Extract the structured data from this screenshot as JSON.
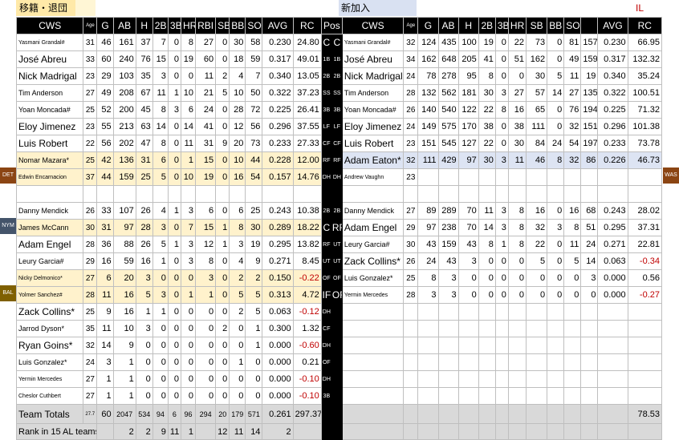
{
  "header": {
    "left": "移籍・退団",
    "right": "新加入",
    "il": "IL"
  },
  "columns": {
    "name": "CWS",
    "age": "Age",
    "g": "G",
    "ab": "AB",
    "h": "H",
    "d": "2B",
    "t": "3B",
    "hr": "HR",
    "rbi": "RBI",
    "sb": "SB",
    "bb": "BB",
    "so": "SO",
    "avg": "AVG",
    "rc": "RC",
    "pos": "Pos"
  },
  "right_columns": {
    "name": "CWS",
    "age": "Age",
    "g": "G",
    "ab": "AB",
    "h": "H",
    "d": "2B",
    "t": "3B",
    "hr": "HR",
    "sb": "SB",
    "bb": "BB",
    "so": "SO",
    "avg": "AVG",
    "rc": "RC"
  },
  "team_markers": [
    {
      "label": "DET",
      "row": 9,
      "side": "left",
      "color": "#8b4513"
    },
    {
      "label": "WAS",
      "row": 9,
      "side": "right",
      "color": "#8b4513"
    },
    {
      "label": "NYM",
      "row": 12,
      "side": "left",
      "color": "#44546a"
    },
    {
      "label": "BAL",
      "row": 16,
      "side": "left",
      "color": "#7f6000"
    }
  ],
  "rows": [
    {
      "hl": false,
      "hr": false,
      "left": {
        "name": "Yasmani Grandal#",
        "size": "xs",
        "age": "31",
        "g": "46",
        "ab": "161",
        "h": "37",
        "d": "7",
        "t": "0",
        "hr": "8",
        "rbi": "27",
        "sb": "0",
        "bb": "30",
        "so": "58",
        "avg": "0.230",
        "rc": "24.80"
      },
      "pos_l": "C",
      "pos_r": "C",
      "posbig": true,
      "right": {
        "name": "Yasmani Grandal#",
        "size": "xs",
        "age": "32",
        "g": "124",
        "ab": "435",
        "h": "100",
        "d": "19",
        "t": "0",
        "hr": "22",
        "sb": "73",
        "bb": "0",
        "so": "81",
        "x": "157",
        "avg": "0.230",
        "rc": "66.95"
      }
    },
    {
      "hl": false,
      "hr": false,
      "left": {
        "name": "José Abreu",
        "size": "",
        "age": "33",
        "g": "60",
        "ab": "240",
        "h": "76",
        "d": "15",
        "t": "0",
        "hr": "19",
        "rbi": "60",
        "sb": "0",
        "bb": "18",
        "so": "59",
        "avg": "0.317",
        "rc": "49.01"
      },
      "pos_l": "1B",
      "pos_r": "1B",
      "posbig": false,
      "right": {
        "name": "José Abreu",
        "size": "",
        "age": "34",
        "g": "162",
        "ab": "648",
        "h": "205",
        "d": "41",
        "t": "0",
        "hr": "51",
        "sb": "162",
        "bb": "0",
        "so": "49",
        "x": "159",
        "avg": "0.317",
        "rc": "132.32"
      }
    },
    {
      "hl": false,
      "hr": false,
      "left": {
        "name": "Nick Madrigal",
        "size": "",
        "age": "23",
        "g": "29",
        "ab": "103",
        "h": "35",
        "d": "3",
        "t": "0",
        "hr": "0",
        "rbi": "11",
        "sb": "2",
        "bb": "4",
        "so": "7",
        "avg": "0.340",
        "rc": "13.05"
      },
      "pos_l": "2B",
      "pos_r": "2B",
      "posbig": false,
      "right": {
        "name": "Nick Madrigal",
        "size": "",
        "age": "24",
        "g": "78",
        "ab": "278",
        "h": "95",
        "d": "8",
        "t": "0",
        "hr": "0",
        "sb": "30",
        "bb": "5",
        "so": "11",
        "x": "19",
        "avg": "0.340",
        "rc": "35.24"
      }
    },
    {
      "hl": false,
      "hr": false,
      "left": {
        "name": "Tim Anderson",
        "size": "sm",
        "age": "27",
        "g": "49",
        "ab": "208",
        "h": "67",
        "d": "11",
        "t": "1",
        "hr": "10",
        "rbi": "21",
        "sb": "5",
        "bb": "10",
        "so": "50",
        "avg": "0.322",
        "rc": "37.23"
      },
      "pos_l": "SS",
      "pos_r": "SS",
      "posbig": false,
      "right": {
        "name": "Tim Anderson",
        "size": "sm",
        "age": "28",
        "g": "132",
        "ab": "562",
        "h": "181",
        "d": "30",
        "t": "3",
        "hr": "27",
        "sb": "57",
        "bb": "14",
        "so": "27",
        "x": "135",
        "avg": "0.322",
        "rc": "100.51"
      }
    },
    {
      "hl": false,
      "hr": false,
      "left": {
        "name": "Yoan Moncada#",
        "size": "sm",
        "age": "25",
        "g": "52",
        "ab": "200",
        "h": "45",
        "d": "8",
        "t": "3",
        "hr": "6",
        "rbi": "24",
        "sb": "0",
        "bb": "28",
        "so": "72",
        "avg": "0.225",
        "rc": "26.41"
      },
      "pos_l": "3B",
      "pos_r": "3B",
      "posbig": false,
      "right": {
        "name": "Yoan Moncada#",
        "size": "sm",
        "age": "26",
        "g": "140",
        "ab": "540",
        "h": "122",
        "d": "22",
        "t": "8",
        "hr": "16",
        "sb": "65",
        "bb": "0",
        "so": "76",
        "x": "194",
        "avg": "0.225",
        "rc": "71.32"
      }
    },
    {
      "hl": false,
      "hr": false,
      "left": {
        "name": "Eloy Jimenez",
        "size": "",
        "age": "23",
        "g": "55",
        "ab": "213",
        "h": "63",
        "d": "14",
        "t": "0",
        "hr": "14",
        "rbi": "41",
        "sb": "0",
        "bb": "12",
        "so": "56",
        "avg": "0.296",
        "rc": "37.55"
      },
      "pos_l": "LF",
      "pos_r": "LF",
      "posbig": false,
      "right": {
        "name": "Eloy Jimenez",
        "size": "",
        "age": "24",
        "g": "149",
        "ab": "575",
        "h": "170",
        "d": "38",
        "t": "0",
        "hr": "38",
        "sb": "111",
        "bb": "0",
        "so": "32",
        "x": "151",
        "avg": "0.296",
        "rc": "101.38"
      }
    },
    {
      "hl": false,
      "hr": false,
      "left": {
        "name": "Luis Robert",
        "size": "",
        "age": "22",
        "g": "56",
        "ab": "202",
        "h": "47",
        "d": "8",
        "t": "0",
        "hr": "11",
        "rbi": "31",
        "sb": "9",
        "bb": "20",
        "so": "73",
        "avg": "0.233",
        "rc": "27.33"
      },
      "pos_l": "CF",
      "pos_r": "CF",
      "posbig": false,
      "right": {
        "name": "Luis Robert",
        "size": "",
        "age": "23",
        "g": "151",
        "ab": "545",
        "h": "127",
        "d": "22",
        "t": "0",
        "hr": "30",
        "sb": "84",
        "bb": "24",
        "so": "54",
        "x": "197",
        "avg": "0.233",
        "rc": "73.78"
      }
    },
    {
      "hl": true,
      "hr": true,
      "left": {
        "name": "Nomar Mazara*",
        "size": "sm",
        "age": "25",
        "g": "42",
        "ab": "136",
        "h": "31",
        "d": "6",
        "t": "0",
        "hr": "1",
        "rbi": "15",
        "sb": "0",
        "bb": "10",
        "so": "44",
        "avg": "0.228",
        "rc": "12.00"
      },
      "pos_l": "RF",
      "pos_r": "RF",
      "posbig": false,
      "right": {
        "name": "Adam Eaton*",
        "size": "",
        "age": "32",
        "g": "111",
        "ab": "429",
        "h": "97",
        "d": "30",
        "t": "3",
        "hr": "11",
        "sb": "46",
        "bb": "8",
        "so": "32",
        "x": "86",
        "avg": "0.226",
        "rc": "46.73"
      }
    },
    {
      "hl": true,
      "hr": false,
      "left": {
        "name": "Edwin Encarnacion",
        "size": "xs",
        "age": "37",
        "g": "44",
        "ab": "159",
        "h": "25",
        "d": "5",
        "t": "0",
        "hr": "10",
        "rbi": "19",
        "sb": "0",
        "bb": "16",
        "so": "54",
        "avg": "0.157",
        "rc": "14.76"
      },
      "pos_l": "DH",
      "pos_r": "DH",
      "posbig": false,
      "right": {
        "name": "Andrew Vaughn",
        "size": "xs",
        "age": "23",
        "g": "",
        "ab": "",
        "h": "",
        "d": "",
        "t": "",
        "hr": "",
        "sb": "",
        "bb": "",
        "so": "",
        "x": "",
        "avg": "",
        "rc": ""
      }
    },
    {
      "hl": false,
      "hr": false,
      "spacer": true
    },
    {
      "hl": false,
      "hr": false,
      "left": {
        "name": "Danny Mendick",
        "size": "sm",
        "age": "26",
        "g": "33",
        "ab": "107",
        "h": "26",
        "d": "4",
        "t": "1",
        "hr": "3",
        "rbi": "6",
        "sb": "0",
        "bb": "6",
        "so": "25",
        "avg": "0.243",
        "rc": "10.38"
      },
      "pos_l": "2B",
      "pos_r": "2B",
      "posbig": false,
      "right": {
        "name": "Danny Mendick",
        "size": "sm",
        "age": "27",
        "g": "89",
        "ab": "289",
        "h": "70",
        "d": "11",
        "t": "3",
        "hr": "8",
        "sb": "16",
        "bb": "0",
        "so": "16",
        "x": "68",
        "avg": "0.243",
        "rc": "28.02"
      }
    },
    {
      "hl": true,
      "hr": false,
      "left": {
        "name": "James McCann",
        "size": "sm",
        "age": "30",
        "g": "31",
        "ab": "97",
        "h": "28",
        "d": "3",
        "t": "0",
        "hr": "7",
        "rbi": "15",
        "sb": "1",
        "bb": "8",
        "so": "30",
        "avg": "0.289",
        "rc": "18.22"
      },
      "pos_l": "C",
      "pos_r": "RF",
      "posbig": true,
      "right": {
        "name": "Adam Engel",
        "size": "",
        "age": "29",
        "g": "97",
        "ab": "238",
        "h": "70",
        "d": "14",
        "t": "3",
        "hr": "8",
        "sb": "32",
        "bb": "3",
        "so": "8",
        "x": "51",
        "avg": "0.295",
        "rc": "37.31"
      }
    },
    {
      "hl": false,
      "hr": false,
      "left": {
        "name": "Adam Engel",
        "size": "",
        "age": "28",
        "g": "36",
        "ab": "88",
        "h": "26",
        "d": "5",
        "t": "1",
        "hr": "3",
        "rbi": "12",
        "sb": "1",
        "bb": "3",
        "so": "19",
        "avg": "0.295",
        "rc": "13.82"
      },
      "pos_l": "RF",
      "pos_r": "UT",
      "posbig": false,
      "right": {
        "name": "Leury Garcia#",
        "size": "sm",
        "age": "30",
        "g": "43",
        "ab": "159",
        "h": "43",
        "d": "8",
        "t": "1",
        "hr": "8",
        "sb": "22",
        "bb": "0",
        "so": "11",
        "x": "24",
        "avg": "0.271",
        "rc": "22.81"
      }
    },
    {
      "hl": false,
      "hr": false,
      "left": {
        "name": "Leury Garcia#",
        "size": "sm",
        "age": "29",
        "g": "16",
        "ab": "59",
        "h": "16",
        "d": "1",
        "t": "0",
        "hr": "3",
        "rbi": "8",
        "sb": "0",
        "bb": "4",
        "so": "9",
        "avg": "0.271",
        "rc": "8.45"
      },
      "pos_l": "UT",
      "pos_r": "UT",
      "posbig": false,
      "right": {
        "name": "Zack Collins*",
        "size": "",
        "age": "26",
        "g": "24",
        "ab": "43",
        "h": "3",
        "d": "0",
        "t": "0",
        "hr": "0",
        "sb": "5",
        "bb": "0",
        "so": "5",
        "x": "14",
        "avg": "0.063",
        "rc": "-0.34",
        "neg": true
      }
    },
    {
      "hl": true,
      "hr": false,
      "left": {
        "name": "Nicky Delmonico*",
        "size": "xs",
        "age": "27",
        "g": "6",
        "ab": "20",
        "h": "3",
        "d": "0",
        "t": "0",
        "hr": "0",
        "rbi": "3",
        "sb": "0",
        "bb": "2",
        "so": "2",
        "avg": "0.150",
        "rc": "-0.22",
        "neg": true
      },
      "pos_l": "OF",
      "pos_r": "OF",
      "posbig": false,
      "right": {
        "name": "Luis Gonzalez*",
        "size": "sm",
        "age": "25",
        "g": "8",
        "ab": "3",
        "h": "0",
        "d": "0",
        "t": "0",
        "hr": "0",
        "sb": "0",
        "bb": "0",
        "so": "0",
        "x": "3",
        "avg": "0.000",
        "rc": "0.56"
      }
    },
    {
      "hl": true,
      "hr": false,
      "left": {
        "name": "Yolmer Sanchez#",
        "size": "xs",
        "age": "28",
        "g": "11",
        "ab": "16",
        "h": "5",
        "d": "3",
        "t": "0",
        "hr": "1",
        "rbi": "1",
        "sb": "0",
        "bb": "5",
        "so": "5",
        "avg": "0.313",
        "rc": "4.72"
      },
      "pos_l": "IF",
      "pos_r": "OF",
      "posbig": true,
      "right": {
        "name": "Yermin Mercedes",
        "size": "xs",
        "age": "28",
        "g": "3",
        "ab": "3",
        "h": "0",
        "d": "0",
        "t": "0",
        "hr": "0",
        "sb": "0",
        "bb": "0",
        "so": "0",
        "x": "0",
        "avg": "0.000",
        "rc": "-0.27",
        "neg": true
      }
    },
    {
      "hl": false,
      "hr": false,
      "left": {
        "name": "Zack Collins*",
        "size": "",
        "age": "25",
        "g": "9",
        "ab": "16",
        "h": "1",
        "d": "1",
        "t": "0",
        "hr": "0",
        "rbi": "0",
        "sb": "0",
        "bb": "2",
        "so": "5",
        "avg": "0.063",
        "rc": "-0.12",
        "neg": true
      },
      "pos_l": "DH",
      "pos_r": "",
      "posbig": false,
      "right": null
    },
    {
      "hl": false,
      "hr": false,
      "left": {
        "name": "Jarrod Dyson*",
        "size": "sm",
        "age": "35",
        "g": "11",
        "ab": "10",
        "h": "3",
        "d": "0",
        "t": "0",
        "hr": "0",
        "rbi": "0",
        "sb": "2",
        "bb": "0",
        "so": "1",
        "avg": "0.300",
        "rc": "1.32"
      },
      "pos_l": "CF",
      "pos_r": "",
      "posbig": false,
      "right": null
    },
    {
      "hl": false,
      "hr": false,
      "left": {
        "name": "Ryan Goins*",
        "size": "",
        "age": "32",
        "g": "14",
        "ab": "9",
        "h": "0",
        "d": "0",
        "t": "0",
        "hr": "0",
        "rbi": "0",
        "sb": "0",
        "bb": "0",
        "so": "1",
        "avg": "0.000",
        "rc": "-0.60",
        "neg": true
      },
      "pos_l": "DH",
      "pos_r": "",
      "posbig": false,
      "right": null
    },
    {
      "hl": false,
      "hr": false,
      "left": {
        "name": "Luis Gonzalez*",
        "size": "sm",
        "age": "24",
        "g": "3",
        "ab": "1",
        "h": "0",
        "d": "0",
        "t": "0",
        "hr": "0",
        "rbi": "0",
        "sb": "0",
        "bb": "1",
        "so": "0",
        "avg": "0.000",
        "rc": "0.21"
      },
      "pos_l": "OF",
      "pos_r": "",
      "posbig": false,
      "right": null
    },
    {
      "hl": false,
      "hr": false,
      "left": {
        "name": "Yermin Mercedes",
        "size": "xs",
        "age": "27",
        "g": "1",
        "ab": "1",
        "h": "0",
        "d": "0",
        "t": "0",
        "hr": "0",
        "rbi": "0",
        "sb": "0",
        "bb": "0",
        "so": "0",
        "avg": "0.000",
        "rc": "-0.10",
        "neg": true
      },
      "pos_l": "DH",
      "pos_r": "",
      "posbig": false,
      "right": null
    },
    {
      "hl": false,
      "hr": false,
      "left": {
        "name": "Cheslor Cuthbert",
        "size": "xs",
        "age": "27",
        "g": "1",
        "ab": "1",
        "h": "0",
        "d": "0",
        "t": "0",
        "hr": "0",
        "rbi": "0",
        "sb": "0",
        "bb": "0",
        "so": "0",
        "avg": "0.000",
        "rc": "-0.10",
        "neg": true
      },
      "pos_l": "3B",
      "pos_r": "",
      "posbig": false,
      "right": null
    }
  ],
  "totals": {
    "name": "Team Totals",
    "age": "27.7",
    "g": "60",
    "ab": "2047",
    "h": "534",
    "d": "94",
    "t": "6",
    "hr": "96",
    "rbi": "294",
    "sb": "20",
    "bb": "179",
    "so": "571",
    "avg": "0.261",
    "rc": "297.37",
    "right_rc": "78.53"
  },
  "rank": {
    "name": "Rank in 15 AL teams",
    "g": "",
    "ab": "2",
    "h": "2",
    "d": "9",
    "t": "11",
    "hr": "1",
    "rbi": "",
    "sb": "12",
    "bb": "11",
    "so": "14",
    "avg": "2",
    "rc": ""
  }
}
